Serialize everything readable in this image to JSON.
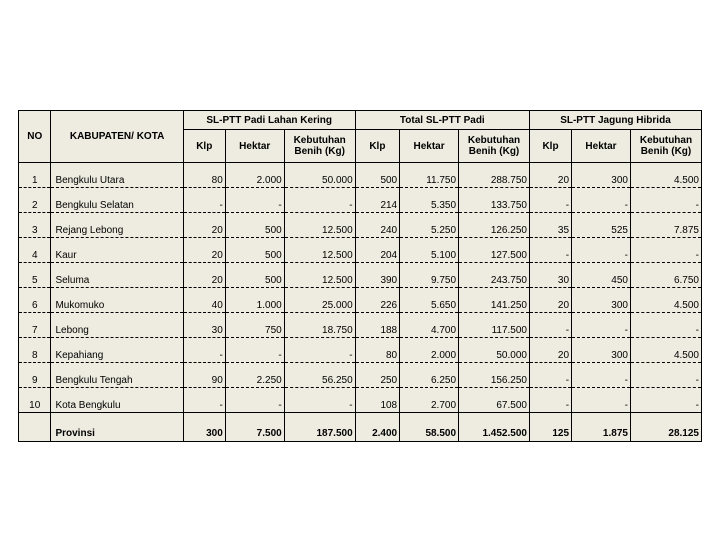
{
  "headers": {
    "no": "NO",
    "kab": "KABUPATEN/ KOTA",
    "g1": "SL-PTT Padi Lahan Kering",
    "g2": "Total SL-PTT Padi",
    "g3": "SL-PTT Jagung Hibrida",
    "klp": "Klp",
    "hektar": "Hektar",
    "benih": "Kebutuhan Benih (Kg)"
  },
  "rows": [
    {
      "no": "1",
      "name": "Bengkulu Utara",
      "a": [
        "80",
        "2.000",
        "50.000"
      ],
      "b": [
        "500",
        "11.750",
        "288.750"
      ],
      "c": [
        "20",
        "300",
        "4.500"
      ]
    },
    {
      "no": "2",
      "name": "Bengkulu Selatan",
      "a": [
        "-",
        "-",
        "-"
      ],
      "b": [
        "214",
        "5.350",
        "133.750"
      ],
      "c": [
        "-",
        "-",
        "-"
      ]
    },
    {
      "no": "3",
      "name": "Rejang Lebong",
      "a": [
        "20",
        "500",
        "12.500"
      ],
      "b": [
        "240",
        "5.250",
        "126.250"
      ],
      "c": [
        "35",
        "525",
        "7.875"
      ]
    },
    {
      "no": "4",
      "name": "Kaur",
      "a": [
        "20",
        "500",
        "12.500"
      ],
      "b": [
        "204",
        "5.100",
        "127.500"
      ],
      "c": [
        "-",
        "-",
        "-"
      ]
    },
    {
      "no": "5",
      "name": "Seluma",
      "a": [
        "20",
        "500",
        "12.500"
      ],
      "b": [
        "390",
        "9.750",
        "243.750"
      ],
      "c": [
        "30",
        "450",
        "6.750"
      ]
    },
    {
      "no": "6",
      "name": "Mukomuko",
      "a": [
        "40",
        "1.000",
        "25.000"
      ],
      "b": [
        "226",
        "5.650",
        "141.250"
      ],
      "c": [
        "20",
        "300",
        "4.500"
      ]
    },
    {
      "no": "7",
      "name": "Lebong",
      "a": [
        "30",
        "750",
        "18.750"
      ],
      "b": [
        "188",
        "4.700",
        "117.500"
      ],
      "c": [
        "-",
        "-",
        "-"
      ]
    },
    {
      "no": "8",
      "name": "Kepahiang",
      "a": [
        "-",
        "-",
        "-"
      ],
      "b": [
        "80",
        "2.000",
        "50.000"
      ],
      "c": [
        "20",
        "300",
        "4.500"
      ]
    },
    {
      "no": "9",
      "name": "Bengkulu Tengah",
      "a": [
        "90",
        "2.250",
        "56.250"
      ],
      "b": [
        "250",
        "6.250",
        "156.250"
      ],
      "c": [
        "-",
        "-",
        "-"
      ]
    },
    {
      "no": "10",
      "name": "Kota Bengkulu",
      "a": [
        "-",
        "-",
        "-"
      ],
      "b": [
        "108",
        "2.700",
        "67.500"
      ],
      "c": [
        "-",
        "-",
        "-"
      ]
    }
  ],
  "total": {
    "name": "Provinsi",
    "a": [
      "300",
      "7.500",
      "187.500"
    ],
    "b": [
      "2.400",
      "58.500",
      "1.452.500"
    ],
    "c": [
      "125",
      "1.875",
      "28.125"
    ]
  }
}
